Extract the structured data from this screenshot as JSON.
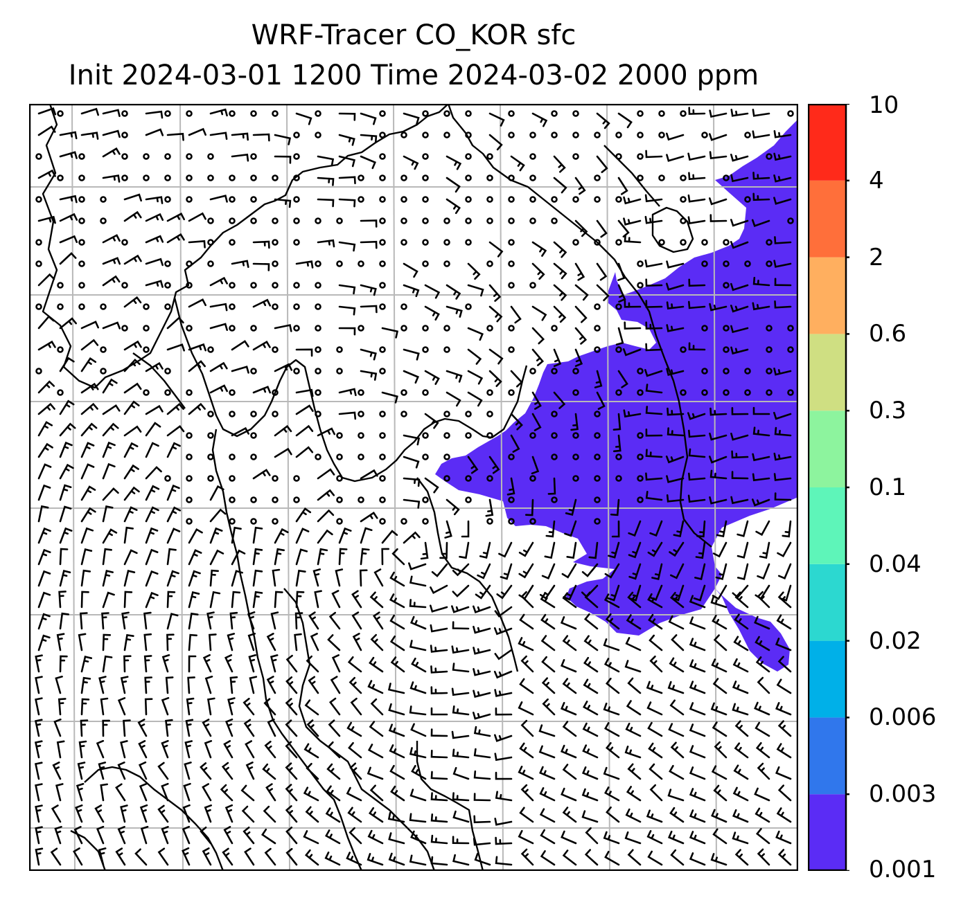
{
  "title": {
    "line1": "WRF-Tracer CO_KOR sfc",
    "line2": "Init 2024-03-01 1200 Time 2024-03-02 2000 ppm"
  },
  "map": {
    "field": "CO_KOR tracer concentration",
    "units": "ppm",
    "plume_color": "#5B2CF5",
    "gridlines": true,
    "wind_barbs": true
  },
  "colorbar": {
    "labels": [
      "0.001",
      "0.003",
      "0.006",
      "0.02",
      "0.04",
      "0.1",
      "0.3",
      "0.6",
      "2",
      "4",
      "10"
    ],
    "colors": [
      "#5B2CF5",
      "#3077EC",
      "#00B0E8",
      "#2CD8D0",
      "#5EF5B9",
      "#8DF49E",
      "#CFDF82",
      "#FFAF5F",
      "#FF6F3A",
      "#FF2A1A"
    ]
  }
}
